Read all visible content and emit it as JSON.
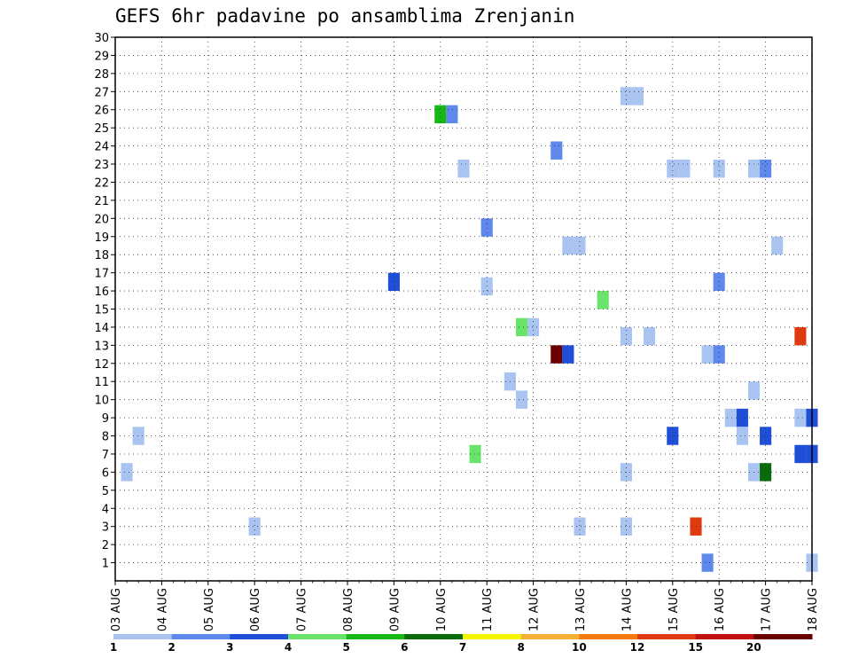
{
  "chart_data": {
    "type": "heatmap",
    "title": "GEFS 6hr padavine po ansamblima Zrenjanin",
    "x_ticks": [
      "03 AUG",
      "04 AUG",
      "05 AUG",
      "06 AUG",
      "07 AUG",
      "08 AUG",
      "09 AUG",
      "10 AUG",
      "11 AUG",
      "12 AUG",
      "13 AUG",
      "14 AUG",
      "15 AUG",
      "16 AUG",
      "17 AUG",
      "18 AUG"
    ],
    "y_ticks": [
      1,
      2,
      3,
      4,
      5,
      6,
      7,
      8,
      9,
      10,
      11,
      12,
      13,
      14,
      15,
      16,
      17,
      18,
      19,
      20,
      21,
      22,
      23,
      24,
      25,
      26,
      27,
      28,
      29,
      30
    ],
    "xlim_days": [
      0,
      15
    ],
    "ylim": [
      0,
      30
    ],
    "grid": true,
    "colorbar": {
      "labels": [
        "1",
        "2",
        "3",
        "4",
        "5",
        "6",
        "7",
        "8",
        "10",
        "12",
        "15",
        "20"
      ],
      "colors": [
        "#aac4f2",
        "#5e88ec",
        "#1f4fd8",
        "#6ae36a",
        "#16b816",
        "#0a6b0a",
        "#f5f500",
        "#f5b135",
        "#f57a0a",
        "#e03a10",
        "#c01010",
        "#6b0000"
      ]
    },
    "cells": [
      {
        "d": 0.25,
        "m": 6,
        "c": 0
      },
      {
        "d": 0.5,
        "m": 8,
        "c": 0
      },
      {
        "d": 3.0,
        "m": 3,
        "c": 0
      },
      {
        "d": 6.0,
        "m": 16.5,
        "c": 2
      },
      {
        "d": 7.0,
        "m": 25.75,
        "c": 4
      },
      {
        "d": 7.25,
        "m": 25.75,
        "c": 1
      },
      {
        "d": 7.5,
        "m": 22.75,
        "c": 0
      },
      {
        "d": 8.0,
        "m": 19.5,
        "c": 1
      },
      {
        "d": 8.0,
        "m": 16.25,
        "c": 0
      },
      {
        "d": 7.75,
        "m": 7,
        "c": 3
      },
      {
        "d": 8.5,
        "m": 11,
        "c": 0
      },
      {
        "d": 8.75,
        "m": 10,
        "c": 0
      },
      {
        "d": 8.75,
        "m": 14,
        "c": 3
      },
      {
        "d": 9.0,
        "m": 14,
        "c": 0
      },
      {
        "d": 9.5,
        "m": 23.75,
        "c": 1
      },
      {
        "d": 9.5,
        "m": 12.5,
        "c": 11
      },
      {
        "d": 9.75,
        "m": 12.5,
        "c": 2
      },
      {
        "d": 9.75,
        "m": 18.5,
        "c": 0
      },
      {
        "d": 10.0,
        "m": 18.5,
        "c": 0
      },
      {
        "d": 10.0,
        "m": 3,
        "c": 0
      },
      {
        "d": 10.5,
        "m": 15.5,
        "c": 3
      },
      {
        "d": 11.0,
        "m": 26.75,
        "c": 0
      },
      {
        "d": 11.25,
        "m": 26.75,
        "c": 0
      },
      {
        "d": 11.0,
        "m": 13.5,
        "c": 0
      },
      {
        "d": 11.5,
        "m": 13.5,
        "c": 0
      },
      {
        "d": 11.0,
        "m": 6,
        "c": 0
      },
      {
        "d": 11.0,
        "m": 3,
        "c": 0
      },
      {
        "d": 12.0,
        "m": 22.75,
        "c": 0
      },
      {
        "d": 12.25,
        "m": 22.75,
        "c": 0
      },
      {
        "d": 12.0,
        "m": 8,
        "c": 2
      },
      {
        "d": 12.5,
        "m": 3,
        "c": 9
      },
      {
        "d": 12.75,
        "m": 1,
        "c": 1
      },
      {
        "d": 13.0,
        "m": 22.75,
        "c": 0
      },
      {
        "d": 13.0,
        "m": 16.5,
        "c": 1
      },
      {
        "d": 12.75,
        "m": 12.5,
        "c": 0
      },
      {
        "d": 13.0,
        "m": 12.5,
        "c": 1
      },
      {
        "d": 13.25,
        "m": 9,
        "c": 0
      },
      {
        "d": 13.5,
        "m": 9,
        "c": 2
      },
      {
        "d": 13.5,
        "m": 8,
        "c": 0
      },
      {
        "d": 13.75,
        "m": 10.5,
        "c": 0
      },
      {
        "d": 13.75,
        "m": 22.75,
        "c": 0
      },
      {
        "d": 14.0,
        "m": 22.75,
        "c": 1
      },
      {
        "d": 14.25,
        "m": 18.5,
        "c": 0
      },
      {
        "d": 14.0,
        "m": 8,
        "c": 2
      },
      {
        "d": 13.75,
        "m": 6,
        "c": 0
      },
      {
        "d": 14.0,
        "m": 6,
        "c": 5
      },
      {
        "d": 14.75,
        "m": 13.5,
        "c": 9
      },
      {
        "d": 14.75,
        "m": 9,
        "c": 0
      },
      {
        "d": 15.0,
        "m": 9,
        "c": 2
      },
      {
        "d": 14.75,
        "m": 7,
        "c": 2
      },
      {
        "d": 15.0,
        "m": 7,
        "c": 2
      },
      {
        "d": 15.0,
        "m": 1,
        "c": 0
      }
    ]
  }
}
